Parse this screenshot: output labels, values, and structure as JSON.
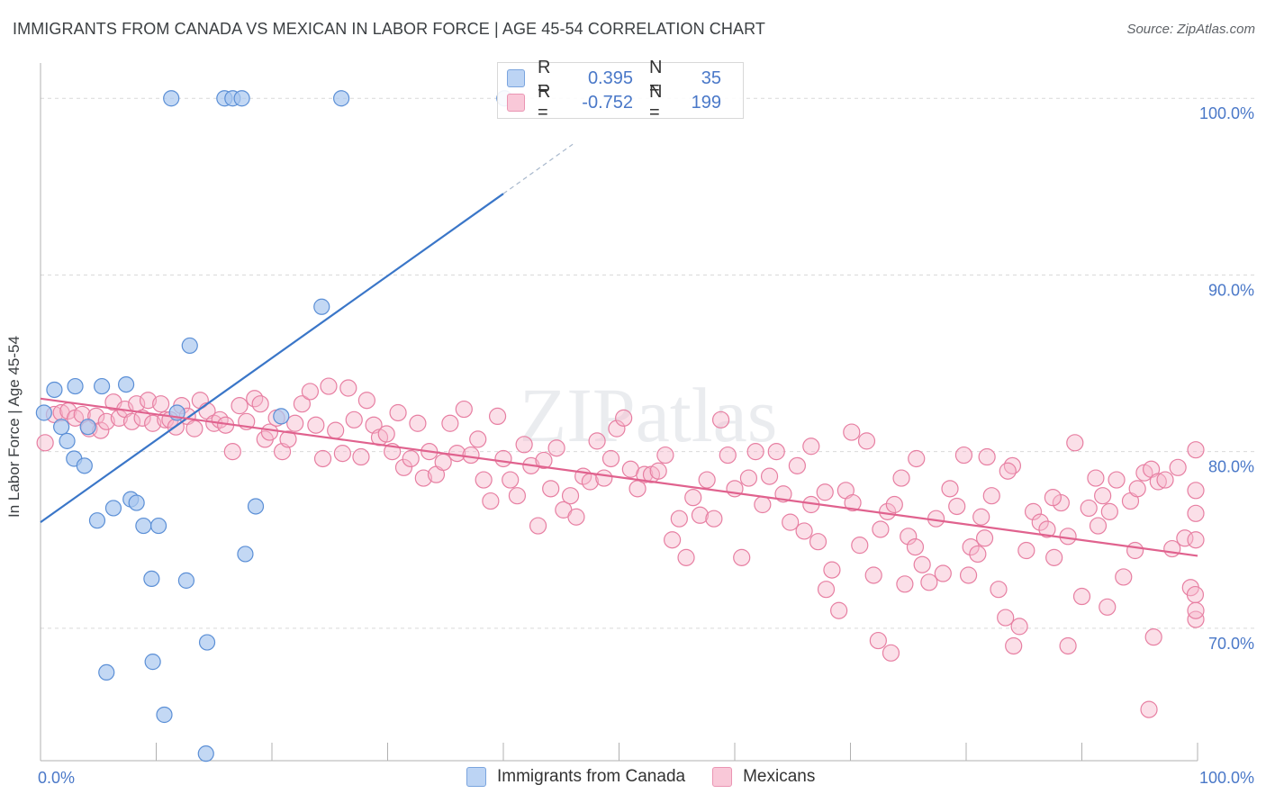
{
  "title": "IMMIGRANTS FROM CANADA VS MEXICAN IN LABOR FORCE | AGE 45-54 CORRELATION CHART",
  "source": "Source: ZipAtlas.com",
  "watermark": "ZIPatlas",
  "legend": {
    "rows": [
      {
        "r_label": "R =",
        "r_value": "0.395",
        "n_label": "N =",
        "n_value": "35"
      },
      {
        "r_label": "R =",
        "r_value": "-0.752",
        "n_label": "N =",
        "n_value": "199"
      }
    ]
  },
  "bottom_legend": [
    "Immigrants from Canada",
    "Mexicans"
  ],
  "colors": {
    "blue_fill": "#aac8f0",
    "blue_stroke": "#5b8fd6",
    "blue_line": "#3a76c8",
    "pink_fill": "#f6b8cc",
    "pink_stroke": "#e77fa2",
    "pink_line": "#e0628e",
    "tick_label": "#4a78c8",
    "grid": "#d9d9d9"
  },
  "chart_data": {
    "type": "scatter",
    "title": "IMMIGRANTS FROM CANADA VS MEXICAN IN LABOR FORCE | AGE 45-54 CORRELATION CHART",
    "xlabel": "",
    "ylabel": "In Labor Force | Age 45-54",
    "xlim": [
      0,
      100
    ],
    "ylim": [
      62.5,
      102
    ],
    "x_tick_labels": [
      "0.0%",
      "100.0%"
    ],
    "y_ticks": [
      70,
      80,
      90,
      100
    ],
    "y_tick_labels": [
      "70.0%",
      "80.0%",
      "90.0%",
      "100.0%"
    ],
    "grid": true,
    "series": [
      {
        "name": "Immigrants from Canada",
        "r": 0.395,
        "n": 35,
        "trend": {
          "x": [
            0,
            40
          ],
          "y": [
            76.0,
            94.6
          ],
          "dashed_to": [
            46,
            97.4
          ]
        },
        "points": [
          [
            0.3,
            82.2
          ],
          [
            1.2,
            83.5
          ],
          [
            1.8,
            81.4
          ],
          [
            2.3,
            80.6
          ],
          [
            2.9,
            79.6
          ],
          [
            3.0,
            83.7
          ],
          [
            3.8,
            79.2
          ],
          [
            4.1,
            81.4
          ],
          [
            4.9,
            76.1
          ],
          [
            5.3,
            83.7
          ],
          [
            6.3,
            76.8
          ],
          [
            7.4,
            83.8
          ],
          [
            7.8,
            77.3
          ],
          [
            8.3,
            77.1
          ],
          [
            8.9,
            75.8
          ],
          [
            10.2,
            75.8
          ],
          [
            11.3,
            100.0
          ],
          [
            11.8,
            82.2
          ],
          [
            12.6,
            72.7
          ],
          [
            12.9,
            86.0
          ],
          [
            15.9,
            100.0
          ],
          [
            16.6,
            100.0
          ],
          [
            17.7,
            74.2
          ],
          [
            17.4,
            100.0
          ],
          [
            18.6,
            76.9
          ],
          [
            20.8,
            82.0
          ],
          [
            24.3,
            88.2
          ],
          [
            26.0,
            100.0
          ],
          [
            40.1,
            100.0
          ],
          [
            5.7,
            67.5
          ],
          [
            9.6,
            72.8
          ],
          [
            9.7,
            68.1
          ],
          [
            10.7,
            65.1
          ],
          [
            14.4,
            69.2
          ],
          [
            14.3,
            62.9
          ]
        ]
      },
      {
        "name": "Mexicans",
        "r": -0.752,
        "n": 199,
        "trend": {
          "x": [
            0,
            100
          ],
          "y": [
            83.0,
            74.1
          ]
        },
        "points": [
          [
            0.4,
            80.5
          ],
          [
            1.2,
            82.1
          ],
          [
            1.8,
            82.2
          ],
          [
            2.4,
            82.3
          ],
          [
            3.0,
            81.9
          ],
          [
            3.6,
            82.1
          ],
          [
            4.2,
            81.3
          ],
          [
            4.8,
            82.0
          ],
          [
            5.2,
            81.2
          ],
          [
            5.7,
            81.7
          ],
          [
            6.3,
            82.8
          ],
          [
            6.8,
            81.9
          ],
          [
            7.3,
            82.4
          ],
          [
            7.9,
            81.7
          ],
          [
            8.3,
            82.7
          ],
          [
            8.8,
            81.9
          ],
          [
            9.3,
            82.9
          ],
          [
            9.7,
            81.6
          ],
          [
            10.4,
            82.7
          ],
          [
            10.8,
            81.8
          ],
          [
            11.2,
            81.8
          ],
          [
            11.7,
            81.4
          ],
          [
            12.2,
            82.6
          ],
          [
            12.7,
            82.0
          ],
          [
            13.3,
            81.3
          ],
          [
            13.8,
            82.9
          ],
          [
            14.4,
            82.3
          ],
          [
            15.0,
            81.6
          ],
          [
            15.5,
            81.8
          ],
          [
            16.0,
            81.5
          ],
          [
            16.6,
            80.0
          ],
          [
            17.2,
            82.6
          ],
          [
            17.8,
            81.7
          ],
          [
            18.5,
            83.0
          ],
          [
            19.0,
            82.7
          ],
          [
            19.4,
            80.7
          ],
          [
            19.8,
            81.1
          ],
          [
            20.4,
            81.9
          ],
          [
            20.9,
            80.0
          ],
          [
            21.4,
            80.7
          ],
          [
            22.0,
            81.6
          ],
          [
            22.6,
            82.7
          ],
          [
            23.3,
            83.4
          ],
          [
            23.8,
            81.5
          ],
          [
            24.4,
            79.6
          ],
          [
            24.9,
            83.7
          ],
          [
            25.5,
            81.2
          ],
          [
            26.1,
            79.9
          ],
          [
            26.6,
            83.6
          ],
          [
            27.1,
            81.8
          ],
          [
            27.7,
            79.7
          ],
          [
            28.2,
            82.9
          ],
          [
            28.8,
            81.5
          ],
          [
            29.3,
            80.8
          ],
          [
            29.9,
            81.0
          ],
          [
            30.4,
            80.0
          ],
          [
            30.9,
            82.2
          ],
          [
            31.4,
            79.1
          ],
          [
            32.0,
            79.6
          ],
          [
            32.6,
            81.6
          ],
          [
            33.1,
            78.5
          ],
          [
            33.6,
            80.0
          ],
          [
            34.2,
            78.7
          ],
          [
            34.8,
            79.4
          ],
          [
            35.4,
            81.6
          ],
          [
            36.0,
            79.9
          ],
          [
            36.6,
            82.4
          ],
          [
            37.2,
            79.8
          ],
          [
            37.8,
            80.7
          ],
          [
            38.3,
            78.4
          ],
          [
            38.9,
            77.2
          ],
          [
            39.5,
            82.0
          ],
          [
            40.0,
            79.6
          ],
          [
            40.6,
            78.4
          ],
          [
            41.2,
            77.5
          ],
          [
            41.8,
            80.4
          ],
          [
            42.4,
            79.2
          ],
          [
            43.0,
            75.8
          ],
          [
            43.5,
            79.5
          ],
          [
            44.1,
            77.9
          ],
          [
            44.6,
            80.2
          ],
          [
            45.2,
            76.7
          ],
          [
            45.8,
            77.5
          ],
          [
            46.3,
            76.3
          ],
          [
            46.9,
            78.6
          ],
          [
            47.5,
            78.3
          ],
          [
            48.1,
            80.6
          ],
          [
            48.7,
            78.5
          ],
          [
            49.3,
            79.6
          ],
          [
            49.8,
            81.3
          ],
          [
            50.4,
            81.9
          ],
          [
            51.0,
            79.0
          ],
          [
            51.6,
            77.9
          ],
          [
            52.2,
            78.7
          ],
          [
            52.8,
            78.7
          ],
          [
            53.4,
            78.9
          ],
          [
            54.0,
            79.8
          ],
          [
            54.6,
            75.0
          ],
          [
            55.2,
            76.2
          ],
          [
            55.8,
            74.0
          ],
          [
            56.4,
            77.4
          ],
          [
            57.0,
            76.4
          ],
          [
            57.6,
            78.4
          ],
          [
            58.2,
            76.2
          ],
          [
            58.8,
            81.8
          ],
          [
            59.4,
            79.8
          ],
          [
            60.0,
            77.9
          ],
          [
            60.6,
            74.0
          ],
          [
            61.2,
            78.5
          ],
          [
            61.8,
            80.0
          ],
          [
            62.4,
            77.0
          ],
          [
            63.0,
            78.6
          ],
          [
            63.6,
            80.0
          ],
          [
            64.2,
            77.6
          ],
          [
            64.8,
            76.0
          ],
          [
            65.4,
            79.2
          ],
          [
            66.0,
            75.5
          ],
          [
            66.6,
            77.0
          ],
          [
            67.2,
            74.9
          ],
          [
            67.8,
            77.7
          ],
          [
            68.4,
            73.3
          ],
          [
            69.0,
            71.0
          ],
          [
            69.6,
            77.8
          ],
          [
            70.2,
            77.1
          ],
          [
            70.8,
            74.7
          ],
          [
            71.4,
            80.6
          ],
          [
            72.0,
            73.0
          ],
          [
            72.6,
            75.6
          ],
          [
            73.2,
            76.6
          ],
          [
            73.8,
            77.0
          ],
          [
            74.4,
            78.5
          ],
          [
            75.0,
            75.2
          ],
          [
            75.6,
            74.6
          ],
          [
            76.2,
            73.6
          ],
          [
            76.8,
            72.6
          ],
          [
            77.4,
            76.2
          ],
          [
            78.0,
            73.1
          ],
          [
            78.6,
            77.9
          ],
          [
            79.2,
            76.9
          ],
          [
            79.8,
            79.8
          ],
          [
            80.4,
            74.6
          ],
          [
            81.0,
            74.2
          ],
          [
            81.6,
            75.1
          ],
          [
            82.2,
            77.5
          ],
          [
            82.8,
            72.2
          ],
          [
            83.4,
            70.6
          ],
          [
            84.0,
            79.2
          ],
          [
            84.6,
            70.1
          ],
          [
            85.2,
            74.4
          ],
          [
            85.8,
            76.6
          ],
          [
            86.4,
            76.0
          ],
          [
            87.0,
            75.6
          ],
          [
            87.6,
            74.0
          ],
          [
            88.2,
            77.1
          ],
          [
            88.8,
            75.2
          ],
          [
            89.4,
            80.5
          ],
          [
            90.0,
            71.8
          ],
          [
            90.6,
            76.8
          ],
          [
            91.2,
            78.5
          ],
          [
            91.8,
            77.5
          ],
          [
            92.4,
            76.6
          ],
          [
            93.0,
            78.4
          ],
          [
            93.6,
            72.9
          ],
          [
            94.2,
            77.2
          ],
          [
            94.8,
            77.9
          ],
          [
            95.4,
            78.8
          ],
          [
            96.0,
            79.0
          ],
          [
            96.6,
            78.3
          ],
          [
            97.2,
            78.4
          ],
          [
            97.8,
            74.5
          ],
          [
            98.3,
            79.1
          ],
          [
            98.9,
            75.1
          ],
          [
            99.4,
            72.3
          ],
          [
            99.8,
            71.9
          ],
          [
            100.4,
            70.5
          ],
          [
            101.0,
            75.0
          ],
          [
            101.5,
            77.8
          ],
          [
            102.0,
            80.1
          ],
          [
            102.5,
            76.5
          ],
          [
            102.9,
            71.0
          ],
          [
            96.2,
            69.5
          ],
          [
            73.5,
            68.6
          ],
          [
            92.2,
            71.2
          ],
          [
            95.8,
            65.4
          ],
          [
            84.1,
            69.0
          ],
          [
            88.8,
            69.0
          ],
          [
            80.2,
            73.0
          ],
          [
            70.1,
            81.1
          ],
          [
            75.7,
            79.6
          ],
          [
            83.6,
            78.9
          ],
          [
            81.3,
            76.3
          ],
          [
            91.4,
            75.8
          ],
          [
            72.4,
            69.3
          ],
          [
            66.6,
            80.3
          ],
          [
            67.9,
            72.2
          ],
          [
            74.7,
            72.5
          ],
          [
            81.8,
            79.7
          ],
          [
            87.5,
            77.4
          ],
          [
            94.6,
            74.4
          ]
        ]
      }
    ]
  }
}
